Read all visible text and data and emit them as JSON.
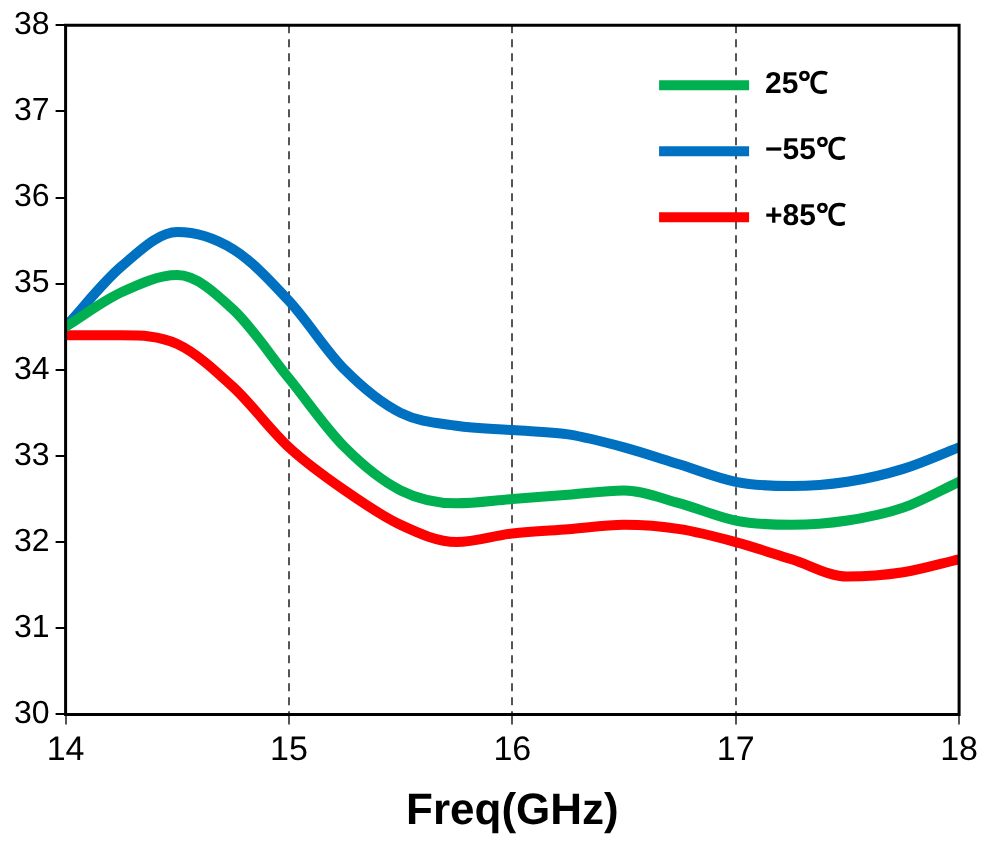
{
  "chart_data": {
    "type": "line",
    "xlabel": "Freq(GHz)",
    "x": [
      14,
      14.25,
      14.5,
      14.75,
      15,
      15.25,
      15.5,
      15.75,
      16,
      16.25,
      16.5,
      16.75,
      17,
      17.25,
      17.5,
      17.75,
      18
    ],
    "series": [
      {
        "name": "25℃",
        "color": "#00b050",
        "values": [
          34.5,
          34.9,
          35.1,
          34.7,
          33.9,
          33.1,
          32.6,
          32.45,
          32.5,
          32.55,
          32.6,
          32.45,
          32.25,
          32.2,
          32.25,
          32.4,
          32.7
        ]
      },
      {
        "name": "−55℃",
        "color": "#0070c0",
        "values": [
          34.5,
          35.2,
          35.6,
          35.4,
          34.8,
          34.0,
          33.5,
          33.35,
          33.3,
          33.25,
          33.1,
          32.9,
          32.7,
          32.65,
          32.7,
          32.85,
          33.1
        ]
      },
      {
        "name": "+85℃",
        "color": "#ff0000",
        "values": [
          34.4,
          34.4,
          34.3,
          33.8,
          33.1,
          32.6,
          32.2,
          32.0,
          32.1,
          32.15,
          32.2,
          32.15,
          32.0,
          31.8,
          31.6,
          31.65,
          31.8
        ]
      }
    ],
    "xlim": [
      14,
      18
    ],
    "xticks": [
      14,
      15,
      16,
      17,
      18
    ],
    "ylim": [
      30,
      38
    ],
    "yticks": [
      30,
      31,
      32,
      33,
      34,
      35,
      36,
      37,
      38
    ],
    "grid": "x",
    "legend": "top right",
    "marker": "none",
    "line_style": "solid"
  }
}
